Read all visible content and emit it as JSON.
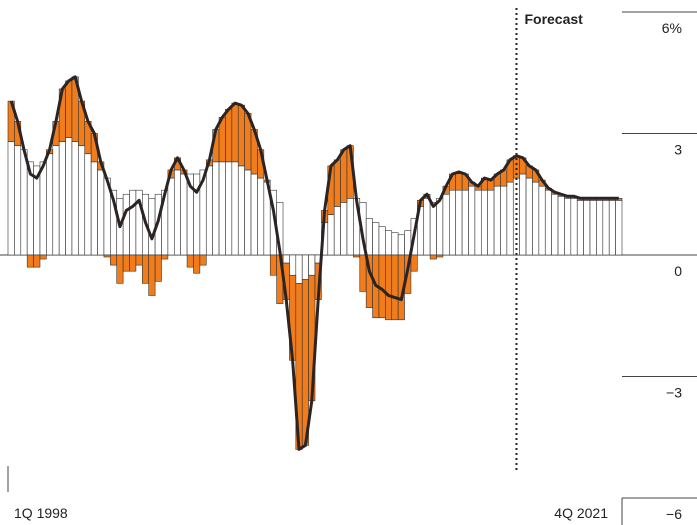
{
  "chart_data": {
    "type": "stacked_bar_line",
    "categories": [
      "1Q 1998",
      null,
      null,
      null,
      null,
      null,
      null,
      null,
      null,
      null,
      null,
      null,
      null,
      null,
      null,
      null,
      null,
      null,
      null,
      null,
      null,
      null,
      null,
      null,
      null,
      null,
      null,
      null,
      null,
      null,
      null,
      null,
      null,
      null,
      null,
      null,
      null,
      null,
      null,
      null,
      null,
      null,
      null,
      null,
      null,
      null,
      null,
      null,
      null,
      null,
      null,
      null,
      null,
      null,
      null,
      null,
      null,
      null,
      null,
      null,
      null,
      null,
      null,
      null,
      null,
      null,
      null,
      null,
      null,
      null,
      null,
      null,
      null,
      null,
      null,
      null,
      null,
      null,
      null,
      null,
      null,
      null,
      null,
      null,
      null,
      null,
      null,
      null,
      null,
      null,
      null,
      null,
      null,
      null,
      null,
      "4Q 2021"
    ],
    "series": [
      {
        "color": "#ffffff",
        "values": [
          2.8,
          2.7,
          2.6,
          2.3,
          2.2,
          2.3,
          2.5,
          2.7,
          2.8,
          2.9,
          2.8,
          2.7,
          2.5,
          2.3,
          2.1,
          1.9,
          1.6,
          1.4,
          1.5,
          1.6,
          1.6,
          1.5,
          1.4,
          1.5,
          1.6,
          1.9,
          2.1,
          2.0,
          2.0,
          2.0,
          2.1,
          2.2,
          2.3,
          2.3,
          2.3,
          2.3,
          2.2,
          2.1,
          2.0,
          1.9,
          1.8,
          1.6,
          1.3,
          -0.2,
          -0.5,
          -0.7,
          -0.6,
          -0.5,
          -0.2,
          0.8,
          1.0,
          1.2,
          1.3,
          1.4,
          1.4,
          1.3,
          0.9,
          0.8,
          0.7,
          0.6,
          0.55,
          0.5,
          0.6,
          0.9,
          1.2,
          1.4,
          1.3,
          1.4,
          1.5,
          1.6,
          1.6,
          1.6,
          1.7,
          1.6,
          1.6,
          1.6,
          1.7,
          1.7,
          1.8,
          1.9,
          2.0,
          1.9,
          1.8,
          1.7,
          1.6,
          1.5,
          1.45,
          1.4,
          1.4,
          1.35,
          1.35,
          1.35,
          1.35,
          1.35,
          1.35,
          1.35
        ]
      },
      {
        "color": "#f07c1c",
        "values": [
          1.0,
          0.6,
          0,
          -0.3,
          -0.3,
          -0.1,
          0.1,
          0.6,
          1.3,
          1.4,
          1.6,
          1.1,
          0.8,
          0.7,
          0.2,
          -0.05,
          -0.25,
          -0.7,
          -0.4,
          -0.4,
          -0.25,
          -0.7,
          -1.0,
          -0.65,
          -0.1,
          0.2,
          0.3,
          0.1,
          -0.3,
          -0.45,
          -0.25,
          0.15,
          0.8,
          1.1,
          1.3,
          1.45,
          1.5,
          1.4,
          1.1,
          0.7,
          0.05,
          -0.5,
          -1.2,
          -0.9,
          -2.1,
          -4.1,
          -4.1,
          -3.1,
          -0.9,
          0.3,
          1.2,
          1.15,
          1.3,
          1.3,
          -0.05,
          -0.9,
          -1.3,
          -1.55,
          -1.55,
          -1.6,
          -1.6,
          -1.6,
          -0.95,
          -0.4,
          0.15,
          0.1,
          -0.1,
          -0.05,
          0.2,
          0.4,
          0.45,
          0.4,
          0.1,
          0.1,
          0.3,
          0.25,
          0.3,
          0.4,
          0.55,
          0.55,
          0.4,
          0.3,
          0.3,
          0.15,
          0.05,
          0.05,
          0.05,
          0.05,
          0.05,
          0.05,
          0.05,
          0.05,
          0.05,
          0.05,
          0.05,
          0.05
        ]
      }
    ],
    "line": {
      "color": "#2b2423",
      "values": [
        3.8,
        3.3,
        2.6,
        2.0,
        1.9,
        2.2,
        2.6,
        3.3,
        4.1,
        4.3,
        4.4,
        3.8,
        3.3,
        3.0,
        2.3,
        1.85,
        1.35,
        0.7,
        1.1,
        1.2,
        1.35,
        0.8,
        0.4,
        0.85,
        1.5,
        2.1,
        2.4,
        2.1,
        1.7,
        1.55,
        1.85,
        2.35,
        3.1,
        3.4,
        3.6,
        3.75,
        3.7,
        3.5,
        3.1,
        2.6,
        1.85,
        1.1,
        0.1,
        -1.1,
        -2.6,
        -4.8,
        -4.7,
        -3.6,
        -1.1,
        1.1,
        2.2,
        2.35,
        2.6,
        2.7,
        1.35,
        0.4,
        -0.4,
        -0.75,
        -0.85,
        -1.0,
        -1.05,
        -1.1,
        -0.35,
        0.5,
        1.35,
        1.5,
        1.2,
        1.35,
        1.7,
        2.0,
        2.05,
        2.0,
        1.8,
        1.7,
        1.9,
        1.85,
        2.0,
        2.1,
        2.35,
        2.45,
        2.4,
        2.2,
        2.1,
        1.85,
        1.65,
        1.55,
        1.5,
        1.45,
        1.45,
        1.4,
        1.4,
        1.4,
        1.4,
        1.4,
        1.4,
        1.4
      ]
    },
    "annotations": [
      {
        "text": "Forecast",
        "x": 79.5
      }
    ],
    "ylim": [
      -6,
      6
    ],
    "yticks": [
      {
        "value": -6,
        "label": "−6"
      },
      {
        "value": -3,
        "label": "−3"
      },
      0,
      3,
      {
        "value": 6,
        "label": "6%"
      }
    ]
  }
}
